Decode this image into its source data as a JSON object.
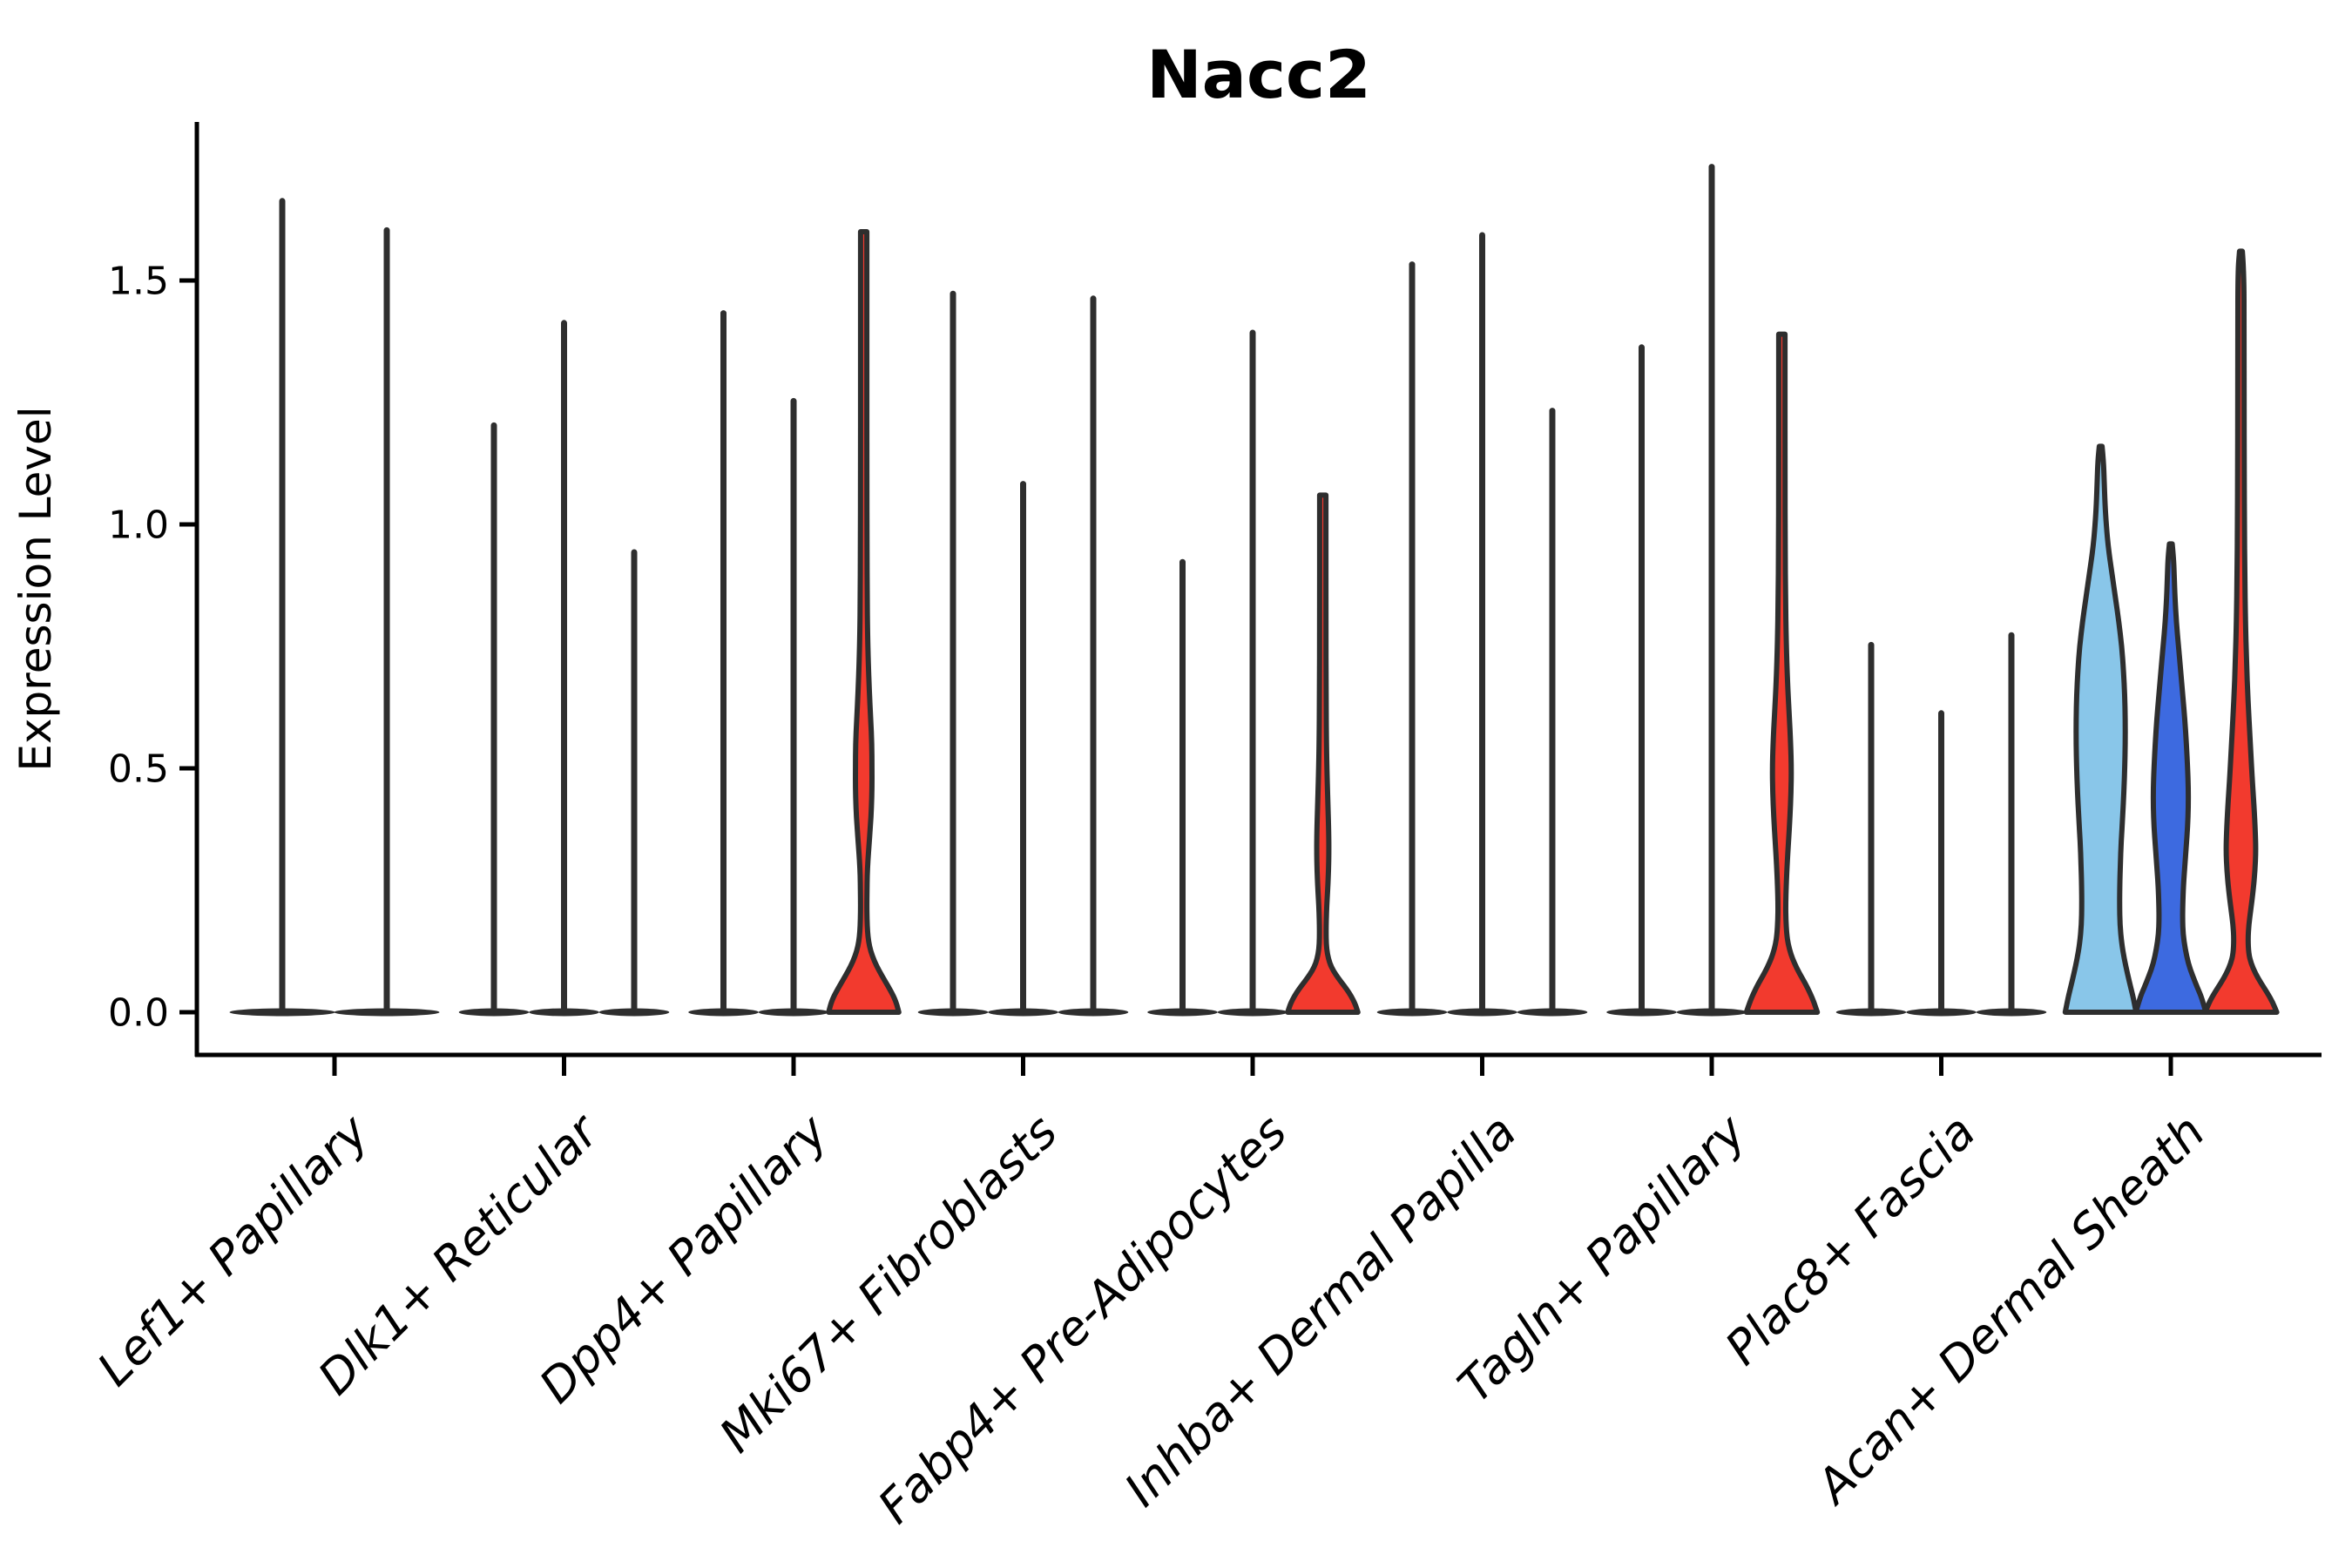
{
  "chart_data": {
    "type": "violin",
    "title": "Nacc2",
    "ylabel": "Expression Level",
    "xlabel": "",
    "ytick_labels": [
      "0.0",
      "0.5",
      "1.0",
      "1.5"
    ],
    "ytick_values": [
      0.0,
      0.5,
      1.0,
      1.5
    ],
    "ylim": [
      -0.09,
      1.83
    ],
    "grid": false,
    "legend": "none",
    "background": "#ffffff",
    "palette": {
      "split1": "#89c6e9",
      "split2": "#3d6ae0",
      "split3": "#f23a2e",
      "outline": "#2e2e2e",
      "axis": "#000000"
    },
    "categories": [
      "Lef1+ Papillary",
      "Dlk1+ Reticular",
      "Dpp4+ Papillary",
      "Mki67+ Fibroblasts",
      "Fabp4+ Pre-Adipocytes",
      "Inhba+ Dermal Papilla",
      "Tagln+ Papillary",
      "Plac8+ Fascia",
      "Acan+ Dermal Sheath"
    ],
    "groups": [
      {
        "category": "Lef1+ Papillary",
        "violins": [
          {
            "shape": "spike",
            "max": 1.67
          },
          {
            "shape": "spike",
            "max": 1.61
          }
        ]
      },
      {
        "category": "Dlk1+ Reticular",
        "violins": [
          {
            "shape": "spike",
            "max": 1.21
          },
          {
            "shape": "spike",
            "max": 1.42
          },
          {
            "shape": "spike",
            "max": 0.95
          }
        ]
      },
      {
        "category": "Dpp4+ Papillary",
        "violins": [
          {
            "shape": "spike",
            "max": 1.44
          },
          {
            "shape": "spike",
            "max": 1.26
          },
          {
            "shape": "violin",
            "max": 1.6,
            "fill": "split3",
            "profile": [
              [
                1.6,
                0.09
              ],
              [
                1.52,
                0.09
              ],
              [
                1.3,
                0.09
              ],
              [
                1.1,
                0.09
              ],
              [
                0.95,
                0.095
              ],
              [
                0.85,
                0.1
              ],
              [
                0.78,
                0.11
              ],
              [
                0.72,
                0.13
              ],
              [
                0.66,
                0.16
              ],
              [
                0.6,
                0.2
              ],
              [
                0.55,
                0.23
              ],
              [
                0.5,
                0.235
              ],
              [
                0.46,
                0.235
              ],
              [
                0.42,
                0.22
              ],
              [
                0.38,
                0.19
              ],
              [
                0.34,
                0.15
              ],
              [
                0.31,
                0.12
              ],
              [
                0.28,
                0.1
              ],
              [
                0.25,
                0.095
              ],
              [
                0.22,
                0.09
              ],
              [
                0.19,
                0.095
              ],
              [
                0.165,
                0.11
              ],
              [
                0.145,
                0.14
              ],
              [
                0.125,
                0.2
              ],
              [
                0.105,
                0.3
              ],
              [
                0.085,
                0.44
              ],
              [
                0.065,
                0.6
              ],
              [
                0.045,
                0.76
              ],
              [
                0.03,
                0.87
              ],
              [
                0.015,
                0.95
              ],
              [
                0.0,
                1.0
              ]
            ]
          }
        ]
      },
      {
        "category": "Mki67+ Fibroblasts",
        "violins": [
          {
            "shape": "spike",
            "max": 1.48
          },
          {
            "shape": "spike",
            "max": 1.09
          },
          {
            "shape": "spike",
            "max": 1.47
          }
        ]
      },
      {
        "category": "Fabp4+ Pre-Adipocytes",
        "violins": [
          {
            "shape": "spike",
            "max": 0.93
          },
          {
            "shape": "spike",
            "max": 1.4
          },
          {
            "shape": "violin",
            "max": 1.06,
            "fill": "split3",
            "profile": [
              [
                1.06,
                0.09
              ],
              [
                1.0,
                0.09
              ],
              [
                0.8,
                0.09
              ],
              [
                0.65,
                0.095
              ],
              [
                0.55,
                0.105
              ],
              [
                0.48,
                0.125
              ],
              [
                0.42,
                0.15
              ],
              [
                0.37,
                0.17
              ],
              [
                0.33,
                0.175
              ],
              [
                0.29,
                0.165
              ],
              [
                0.25,
                0.14
              ],
              [
                0.22,
                0.115
              ],
              [
                0.19,
                0.1
              ],
              [
                0.165,
                0.095
              ],
              [
                0.14,
                0.1
              ],
              [
                0.12,
                0.13
              ],
              [
                0.1,
                0.2
              ],
              [
                0.085,
                0.3
              ],
              [
                0.07,
                0.44
              ],
              [
                0.055,
                0.6
              ],
              [
                0.04,
                0.75
              ],
              [
                0.025,
                0.87
              ],
              [
                0.012,
                0.95
              ],
              [
                0.0,
                1.0
              ]
            ]
          }
        ]
      },
      {
        "category": "Inhba+ Dermal Papilla",
        "violins": [
          {
            "shape": "spike",
            "max": 1.54
          },
          {
            "shape": "spike",
            "max": 1.6
          },
          {
            "shape": "spike",
            "max": 1.24
          }
        ]
      },
      {
        "category": "Tagln+ Papillary",
        "violins": [
          {
            "shape": "spike",
            "max": 1.37
          },
          {
            "shape": "spike",
            "max": 1.74
          },
          {
            "shape": "violin",
            "max": 1.39,
            "fill": "split3",
            "profile": [
              [
                1.39,
                0.09
              ],
              [
                1.3,
                0.09
              ],
              [
                1.1,
                0.09
              ],
              [
                0.95,
                0.095
              ],
              [
                0.85,
                0.105
              ],
              [
                0.76,
                0.125
              ],
              [
                0.68,
                0.16
              ],
              [
                0.61,
                0.21
              ],
              [
                0.55,
                0.25
              ],
              [
                0.5,
                0.27
              ],
              [
                0.45,
                0.26
              ],
              [
                0.4,
                0.23
              ],
              [
                0.35,
                0.19
              ],
              [
                0.3,
                0.15
              ],
              [
                0.26,
                0.125
              ],
              [
                0.22,
                0.11
              ],
              [
                0.19,
                0.115
              ],
              [
                0.16,
                0.14
              ],
              [
                0.14,
                0.18
              ],
              [
                0.12,
                0.25
              ],
              [
                0.1,
                0.36
              ],
              [
                0.08,
                0.5
              ],
              [
                0.06,
                0.66
              ],
              [
                0.04,
                0.8
              ],
              [
                0.02,
                0.92
              ],
              [
                0.0,
                1.01
              ]
            ]
          }
        ]
      },
      {
        "category": "Plac8+ Fascia",
        "violins": [
          {
            "shape": "spike",
            "max": 0.76
          },
          {
            "shape": "spike",
            "max": 0.62
          },
          {
            "shape": "spike",
            "max": 0.78
          }
        ]
      },
      {
        "category": "Acan+ Dermal Sheath",
        "violins": [
          {
            "shape": "violin",
            "max": 1.16,
            "fill": "split1",
            "profile": [
              [
                1.16,
                0.04
              ],
              [
                1.13,
                0.08
              ],
              [
                1.09,
                0.1
              ],
              [
                1.04,
                0.125
              ],
              [
                1.0,
                0.16
              ],
              [
                0.95,
                0.22
              ],
              [
                0.9,
                0.32
              ],
              [
                0.85,
                0.42
              ],
              [
                0.8,
                0.52
              ],
              [
                0.75,
                0.6
              ],
              [
                0.7,
                0.65
              ],
              [
                0.65,
                0.685
              ],
              [
                0.6,
                0.7
              ],
              [
                0.55,
                0.7
              ],
              [
                0.5,
                0.685
              ],
              [
                0.45,
                0.66
              ],
              [
                0.4,
                0.625
              ],
              [
                0.35,
                0.585
              ],
              [
                0.3,
                0.56
              ],
              [
                0.26,
                0.545
              ],
              [
                0.22,
                0.54
              ],
              [
                0.18,
                0.55
              ],
              [
                0.14,
                0.6
              ],
              [
                0.11,
                0.67
              ],
              [
                0.08,
                0.76
              ],
              [
                0.05,
                0.86
              ],
              [
                0.03,
                0.93
              ],
              [
                0.0,
                1.01
              ]
            ]
          },
          {
            "shape": "violin",
            "max": 0.96,
            "fill": "split2",
            "profile": [
              [
                0.96,
                0.04
              ],
              [
                0.93,
                0.08
              ],
              [
                0.89,
                0.1
              ],
              [
                0.85,
                0.12
              ],
              [
                0.8,
                0.16
              ],
              [
                0.75,
                0.22
              ],
              [
                0.7,
                0.28
              ],
              [
                0.65,
                0.34
              ],
              [
                0.6,
                0.4
              ],
              [
                0.55,
                0.445
              ],
              [
                0.5,
                0.48
              ],
              [
                0.46,
                0.5
              ],
              [
                0.42,
                0.5
              ],
              [
                0.38,
                0.48
              ],
              [
                0.34,
                0.44
              ],
              [
                0.3,
                0.4
              ],
              [
                0.26,
                0.36
              ],
              [
                0.22,
                0.34
              ],
              [
                0.19,
                0.335
              ],
              [
                0.16,
                0.35
              ],
              [
                0.13,
                0.41
              ],
              [
                0.1,
                0.5
              ],
              [
                0.075,
                0.62
              ],
              [
                0.05,
                0.76
              ],
              [
                0.03,
                0.88
              ],
              [
                0.0,
                1.0
              ]
            ]
          },
          {
            "shape": "violin",
            "max": 1.56,
            "fill": "split3",
            "profile": [
              [
                1.56,
                0.04
              ],
              [
                1.52,
                0.085
              ],
              [
                1.4,
                0.09
              ],
              [
                1.25,
                0.09
              ],
              [
                1.1,
                0.095
              ],
              [
                1.0,
                0.1
              ],
              [
                0.9,
                0.11
              ],
              [
                0.8,
                0.13
              ],
              [
                0.72,
                0.16
              ],
              [
                0.64,
                0.2
              ],
              [
                0.56,
                0.26
              ],
              [
                0.48,
                0.32
              ],
              [
                0.42,
                0.375
              ],
              [
                0.37,
                0.41
              ],
              [
                0.33,
                0.425
              ],
              [
                0.29,
                0.4
              ],
              [
                0.25,
                0.35
              ],
              [
                0.21,
                0.28
              ],
              [
                0.18,
                0.225
              ],
              [
                0.15,
                0.2
              ],
              [
                0.12,
                0.22
              ],
              [
                0.1,
                0.29
              ],
              [
                0.08,
                0.41
              ],
              [
                0.06,
                0.57
              ],
              [
                0.04,
                0.75
              ],
              [
                0.02,
                0.91
              ],
              [
                0.0,
                1.02
              ]
            ]
          }
        ]
      }
    ]
  }
}
